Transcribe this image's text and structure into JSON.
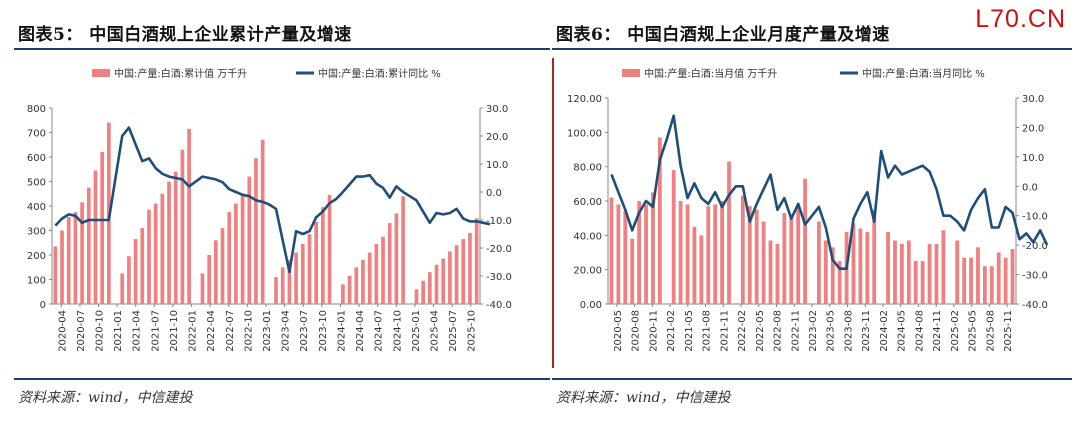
{
  "header": {
    "logo": "L70.CN"
  },
  "chart_data": [
    {
      "id": "fig5",
      "type": "bar+line",
      "title": "图表5：   中国白酒规上企业累计产量及增速",
      "source": "资料来源：wind，中信建投",
      "y_left": {
        "min": 0,
        "max": 800,
        "ticks": [
          "0",
          "100",
          "200",
          "300",
          "400",
          "500",
          "600",
          "700",
          "800"
        ]
      },
      "y_right": {
        "min": -40,
        "max": 30,
        "ticks": [
          "-40.0",
          "-30.0",
          "-20.0",
          "-10.0",
          "0.0",
          "10.0",
          "20.0",
          "30.0"
        ]
      },
      "x_tick_labels": [
        "2020-04",
        "2020-07",
        "2020-10",
        "2021-01",
        "2021-04",
        "2021-07",
        "2021-10",
        "2022-01",
        "2022-04",
        "2022-07",
        "2022-10",
        "2023-01",
        "2023-04",
        "2023-07",
        "2023-10",
        "2024-01",
        "2024-04",
        "2024-07",
        "2024-10",
        "2025-01",
        "2025-04",
        "2025-07",
        "2025-10"
      ],
      "series": [
        {
          "name": "中国:产量:白酒:累计值 万千升",
          "kind": "bar",
          "color": "#f08080",
          "values": [
            235,
            300,
            355,
            375,
            415,
            475,
            545,
            620,
            740,
            null,
            125,
            195,
            265,
            310,
            385,
            410,
            450,
            500,
            540,
            630,
            715,
            null,
            125,
            200,
            260,
            310,
            375,
            410,
            445,
            520,
            595,
            670,
            null,
            110,
            150,
            180,
            210,
            245,
            285,
            335,
            395,
            445,
            null,
            80,
            115,
            150,
            180,
            210,
            245,
            275,
            330,
            370,
            440,
            null,
            60,
            95,
            130,
            160,
            185,
            215,
            240,
            265,
            290,
            350
          ]
        },
        {
          "name": "中国:产量:白酒:累计同比 %",
          "kind": "line",
          "color": "#1f4e79",
          "values": [
            -12,
            -9.5,
            -8,
            -8.5,
            -11,
            -10,
            -10,
            -10,
            -10,
            null,
            20,
            23,
            17,
            11,
            12,
            8.5,
            6.5,
            5.5,
            5,
            4.5,
            2,
            null,
            5.5,
            5,
            4.5,
            3.5,
            1,
            0,
            -1,
            -1.5,
            -3,
            -3.5,
            -4.5,
            -6,
            null,
            -28.5,
            -14,
            -15,
            -14,
            -9,
            -7,
            -4,
            -2.5,
            0,
            null,
            5.5,
            5.5,
            6,
            3,
            1.5,
            -2,
            2,
            0,
            -1.5,
            -3,
            null,
            -11,
            -7.5,
            -8,
            -7.5,
            -6,
            -9.5,
            -10.5,
            -10.5,
            -11,
            -11.5
          ]
        }
      ]
    },
    {
      "id": "fig6",
      "type": "bar+line",
      "title": "图表6：   中国白酒规上企业月度产量及增速",
      "source": "资料来源：wind，中信建投",
      "y_left": {
        "min": 0,
        "max": 120,
        "ticks": [
          "0.00",
          "20.00",
          "40.00",
          "60.00",
          "80.00",
          "100.00",
          "120.00"
        ]
      },
      "y_right": {
        "min": -40,
        "max": 30,
        "ticks": [
          "-40.0",
          "-30.0",
          "-20.0",
          "-10.0",
          "0.0",
          "10.0",
          "20.0",
          "30.0"
        ]
      },
      "x_tick_labels": [
        "2020-05",
        "2020-08",
        "2020-11",
        "2021-02",
        "2021-05",
        "2021-08",
        "2021-11",
        "2022-02",
        "2022-05",
        "2022-08",
        "2022-11",
        "2023-02",
        "2023-05",
        "2023-08",
        "2023-11",
        "2024-02",
        "2024-05",
        "2024-08",
        "2024-11",
        "2025-02",
        "2025-05",
        "2025-08",
        "2025-11"
      ],
      "series": [
        {
          "name": "中国:产量:白酒:当月值 万千升",
          "kind": "bar",
          "color": "#f08080",
          "values": [
            62,
            58,
            54,
            38,
            60,
            58,
            65,
            97,
            null,
            78,
            60,
            58,
            45,
            40,
            57,
            58,
            60,
            83,
            null,
            63,
            57,
            55,
            48,
            37,
            35,
            53,
            50,
            57,
            73,
            null,
            48,
            37,
            33,
            25,
            42,
            47,
            44,
            42,
            55,
            null,
            42,
            37,
            35,
            37,
            25,
            25,
            35,
            35,
            43,
            null,
            37,
            27,
            27,
            33,
            22,
            22,
            30,
            27,
            32
          ]
        },
        {
          "name": "中国:产量:白酒:当月同比 %",
          "kind": "line",
          "color": "#1f4e79",
          "values": [
            4,
            -2,
            -8,
            -15,
            -9,
            -5,
            -7,
            9,
            16,
            24,
            7,
            -4,
            1,
            -4,
            -6,
            -2,
            -7,
            -3,
            0,
            0,
            -12,
            -6,
            -1,
            4,
            -8,
            -4,
            -11,
            -6,
            -13,
            -10,
            -7,
            -14,
            -25,
            -28,
            -28,
            -11,
            -6,
            -2,
            -12,
            12,
            3,
            7,
            4,
            5,
            6,
            7,
            5,
            -1,
            -10,
            -10,
            -12,
            -15,
            -8,
            -4,
            -1,
            -14,
            -14,
            -7,
            -9,
            -18,
            -16,
            -19,
            -15,
            -20
          ]
        }
      ]
    }
  ]
}
